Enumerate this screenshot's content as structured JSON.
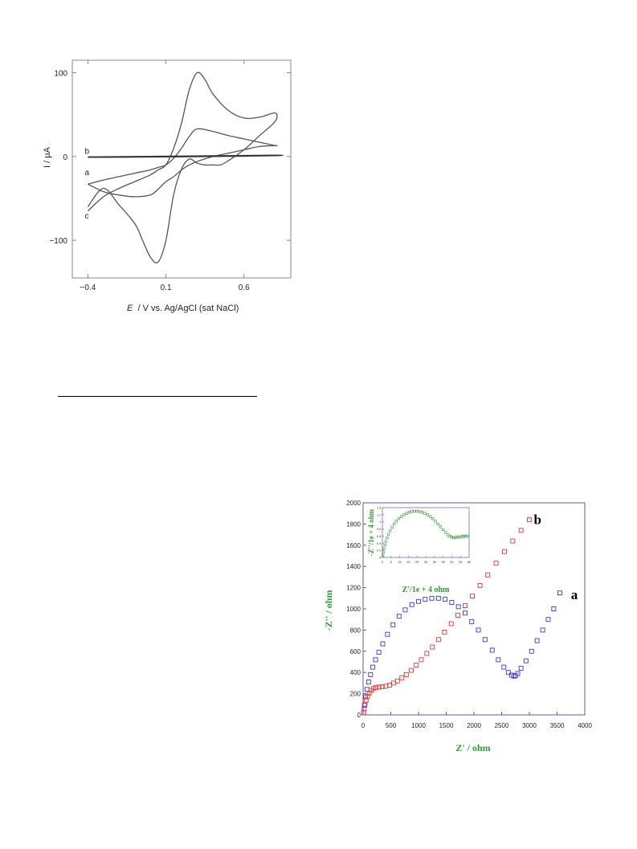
{
  "figures": {
    "cv": {
      "chart_data": {
        "type": "line",
        "ylabel": "I / µA",
        "xlabel_italic": "E",
        "xlabel_rest": "  / V vs. Ag/AgCl (sat NaCl)",
        "xlim": [
          -0.5,
          0.9
        ],
        "ylim": [
          -145,
          115
        ],
        "x_ticks": [
          -0.4,
          0.1,
          0.6
        ],
        "x_tick_labels": [
          "−0.4",
          "0.1",
          "0.6"
        ],
        "y_ticks": [
          100,
          0,
          -100
        ],
        "y_tick_labels": [
          "100",
          "0",
          "−100"
        ],
        "series": [
          {
            "name": "a",
            "color": "#555555",
            "x": [
              -0.4,
              -0.3,
              -0.2,
              -0.1,
              0.0,
              0.05,
              0.1,
              0.15,
              0.2,
              0.25,
              0.3,
              0.4,
              0.5,
              0.6,
              0.7,
              0.8,
              0.8,
              0.7,
              0.6,
              0.5,
              0.4,
              0.3,
              0.25,
              0.2,
              0.15,
              0.1,
              0.05,
              0.0,
              -0.1,
              -0.2,
              -0.3,
              -0.4
            ],
            "y": [
              -33,
              -28,
              -24,
              -20,
              -16,
              -13,
              -10,
              -2,
              10,
              24,
              33,
              30,
              25,
              21,
              17,
              13,
              13,
              12,
              8,
              4,
              0,
              -6,
              -10,
              -16,
              -24,
              -30,
              -39,
              -46,
              -48,
              -46,
              -42,
              -33
            ]
          },
          {
            "name": "b",
            "color": "#333333",
            "x": [
              -0.4,
              0.0,
              0.4,
              0.8,
              0.8,
              0.4,
              0.0,
              -0.4
            ],
            "y": [
              -1,
              -0.6,
              0,
              1,
              1.6,
              0.9,
              0.3,
              -0.4
            ]
          },
          {
            "name": "c",
            "color": "#555555",
            "x": [
              -0.4,
              -0.3,
              -0.2,
              -0.1,
              0.0,
              0.05,
              0.1,
              0.15,
              0.2,
              0.25,
              0.3,
              0.35,
              0.4,
              0.5,
              0.6,
              0.7,
              0.8,
              0.8,
              0.7,
              0.6,
              0.5,
              0.45,
              0.4,
              0.35,
              0.3,
              0.25,
              0.2,
              0.15,
              0.1,
              0.05,
              0.0,
              -0.05,
              -0.1,
              -0.2,
              -0.3,
              -0.4
            ],
            "y": [
              -65,
              -48,
              -38,
              -30,
              -22,
              -16,
              -10,
              10,
              40,
              80,
              100,
              92,
              75,
              55,
              46,
              47,
              52,
              42,
              25,
              8,
              -5,
              -10,
              -10,
              -10,
              -8,
              -3,
              -15,
              -45,
              -100,
              -126,
              -120,
              -100,
              -80,
              -58,
              -38,
              -60
            ]
          }
        ],
        "curve_labels": [
          "b",
          "a",
          "c"
        ]
      }
    },
    "eis": {
      "chart_data": {
        "type": "scatter",
        "xlabel": "Z' / ohm",
        "ylabel": "-Z'' / ohm",
        "xlim": [
          0,
          4000
        ],
        "ylim": [
          0,
          2000
        ],
        "x_ticks": [
          0,
          500,
          1000,
          1500,
          2000,
          2500,
          3000,
          3500,
          4000
        ],
        "y_ticks": [
          0,
          200,
          400,
          600,
          800,
          1000,
          1200,
          1400,
          1600,
          1800,
          2000
        ],
        "series": [
          {
            "name": "a",
            "color": "#3333ee",
            "x": [
              10,
              25,
              45,
              70,
              100,
              135,
              175,
              225,
              285,
              355,
              440,
              540,
              650,
              760,
              880,
              1000,
              1120,
              1240,
              1360,
              1480,
              1600,
              1720,
              1840,
              1960,
              2080,
              2200,
              2330,
              2440,
              2540,
              2620,
              2680,
              2720,
              2750,
              2790,
              2850,
              2940,
              3040,
              3140,
              3240,
              3340,
              3440,
              3550
            ],
            "y": [
              20,
              90,
              170,
              240,
              310,
              380,
              450,
              520,
              590,
              670,
              760,
              850,
              930,
              990,
              1040,
              1070,
              1090,
              1100,
              1100,
              1090,
              1060,
              1020,
              960,
              880,
              800,
              710,
              610,
              520,
              450,
              400,
              375,
              365,
              370,
              390,
              440,
              510,
              600,
              700,
              800,
              900,
              1000,
              1150
            ]
          },
          {
            "name": "b",
            "color": "#ee3333",
            "x": [
              10,
              20,
              35,
              55,
              80,
              110,
              145,
              185,
              230,
              285,
              345,
              410,
              480,
              550,
              620,
              700,
              780,
              870,
              960,
              1050,
              1150,
              1250,
              1360,
              1470,
              1590,
              1710,
              1840,
              1970,
              2110,
              2250,
              2400,
              2550,
              2700,
              2850,
              3000
            ],
            "y": [
              20,
              60,
              100,
              140,
              175,
              205,
              230,
              248,
              258,
              262,
              265,
              270,
              280,
              300,
              320,
              350,
              380,
              420,
              470,
              520,
              580,
              640,
              710,
              780,
              860,
              940,
              1030,
              1120,
              1220,
              1320,
              1430,
              1540,
              1640,
              1740,
              1840
            ]
          }
        ],
        "series_labels": [
          "b",
          "a"
        ],
        "inset": {
          "xlabel": "Z'/1e + 4 ohm",
          "ylabel": "-Z''/1e + 4 ohm",
          "xlim": [
            0,
            50
          ],
          "ylim": [
            0,
            1.4
          ],
          "x_ticks": [
            0,
            5,
            10,
            15,
            20,
            25,
            30,
            35,
            40,
            45,
            50
          ],
          "y_ticks": [
            0,
            0.2,
            0.4,
            0.6,
            0.8,
            1.0,
            1.2,
            1.4
          ],
          "series": [
            {
              "color": "#339933",
              "x": [
                0.3,
                0.6,
                1,
                1.5,
                2,
                2.7,
                3.5,
                4.5,
                5.6,
                6.8,
                8,
                9.5,
                11,
                12.5,
                14,
                15.5,
                17,
                18.5,
                20,
                21.5,
                23,
                24.5,
                26,
                27.5,
                29,
                30.5,
                32,
                33.5,
                35,
                36.5,
                38,
                39,
                40,
                41,
                42,
                43,
                44,
                45,
                46,
                47,
                48,
                49
              ],
              "y": [
                0.05,
                0.15,
                0.25,
                0.35,
                0.45,
                0.55,
                0.65,
                0.75,
                0.85,
                0.94,
                1.02,
                1.09,
                1.15,
                1.2,
                1.24,
                1.27,
                1.29,
                1.3,
                1.3,
                1.29,
                1.27,
                1.24,
                1.2,
                1.15,
                1.09,
                1.02,
                0.94,
                0.86,
                0.78,
                0.7,
                0.63,
                0.59,
                0.57,
                0.56,
                0.56,
                0.57,
                0.58,
                0.57,
                0.59,
                0.6,
                0.59,
                0.6
              ]
            }
          ]
        }
      }
    }
  }
}
